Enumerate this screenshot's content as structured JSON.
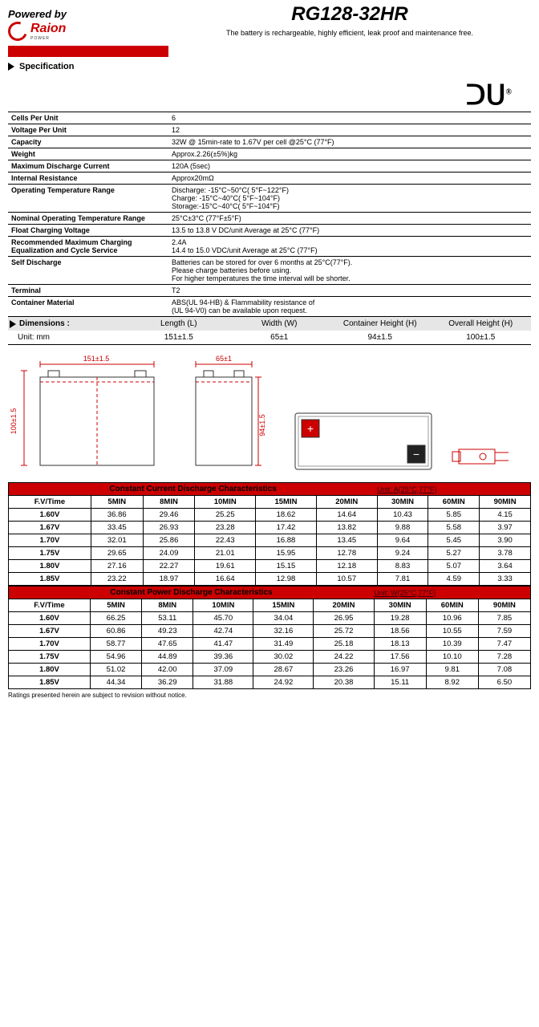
{
  "header": {
    "powered_by": "Powered by",
    "brand": "Raion",
    "brand_sub": "POWER",
    "model": "RG128-32HR",
    "tagline": "The battery is rechargeable, highly efficient, leak proof and maintenance free."
  },
  "ul_mark": "ᑐᑌ",
  "spec": {
    "title": "Specification",
    "rows": [
      {
        "k": "Cells Per Unit",
        "v": "6"
      },
      {
        "k": "Voltage Per Unit",
        "v": "12"
      },
      {
        "k": "Capacity",
        "v": "32W @ 15min-rate to 1.67V per cell @25°C (77°F)"
      },
      {
        "k": "Weight",
        "v": "Approx.2.26(±5%)kg"
      },
      {
        "k": "Maximum Discharge Current",
        "v": "120A (5sec)"
      },
      {
        "k": "Internal Resistance",
        "v": "Approx20mΩ"
      },
      {
        "k": "Operating Temperature Range",
        "v": "Discharge: -15°C~50°C( 5°F~122°F)\nCharge: -15°C~40°C( 5°F~104°F)\nStorage:-15°C~40°C( 5°F~104°F)"
      },
      {
        "k": "Nominal Operating Temperature Range",
        "v": "25°C±3°C (77°F±5°F)"
      },
      {
        "k": "Float Charging Voltage",
        "v": "13.5 to 13.8 V DC/unit Average at 25°C (77°F)"
      },
      {
        "k": "Recommended Maximum Charging Equalization and Cycle Service",
        "v": "2.4A\n14.4 to 15.0 VDC/unit Average at 25°C (77°F)"
      },
      {
        "k": "Self Discharge",
        "v": "Batteries can be stored for over 6 months at 25°C(77°F).\nPlease charge batteries before using.\nFor higher temperatures the time interval will be shorter."
      },
      {
        "k": "Terminal",
        "v": "T2"
      },
      {
        "k": "Container Material",
        "v": "ABS(UL 94-HB) & Flammability resistance of\n(UL 94-V0) can be available upon request."
      }
    ]
  },
  "dimensions": {
    "title": "Dimensions :",
    "unit_label": "Unit: mm",
    "cols": [
      "Length (L)",
      "Width (W)",
      "Container Height (H)",
      "Overall Height (H)"
    ],
    "vals": [
      "151±1.5",
      "65±1",
      "94±1.5",
      "100±1.5"
    ],
    "label_L": "151±1.5",
    "label_W": "65±1",
    "label_H": "94±1.5",
    "label_OH": "100±1.5"
  },
  "colors": {
    "accent": "#cc0000",
    "gray": "#e6e6e6"
  },
  "table1": {
    "title": "Constant Current Discharge Characteristics",
    "unit": "Unit: A(25°C,77°F)",
    "head": [
      "F.V/Time",
      "5MIN",
      "8MIN",
      "10MIN",
      "15MIN",
      "20MIN",
      "30MIN",
      "60MIN",
      "90MIN"
    ],
    "rows": [
      [
        "1.60V",
        "36.86",
        "29.46",
        "25.25",
        "18.62",
        "14.64",
        "10.43",
        "5.85",
        "4.15"
      ],
      [
        "1.67V",
        "33.45",
        "26.93",
        "23.28",
        "17.42",
        "13.82",
        "9.88",
        "5.58",
        "3.97"
      ],
      [
        "1.70V",
        "32.01",
        "25.86",
        "22.43",
        "16.88",
        "13.45",
        "9.64",
        "5.45",
        "3.90"
      ],
      [
        "1.75V",
        "29.65",
        "24.09",
        "21.01",
        "15.95",
        "12.78",
        "9.24",
        "5.27",
        "3.78"
      ],
      [
        "1.80V",
        "27.16",
        "22.27",
        "19.61",
        "15.15",
        "12.18",
        "8.83",
        "5.07",
        "3.64"
      ],
      [
        "1.85V",
        "23.22",
        "18.97",
        "16.64",
        "12.98",
        "10.57",
        "7.81",
        "4.59",
        "3.33"
      ]
    ]
  },
  "table2": {
    "title": "Constant Power Discharge Characteristics",
    "unit": "Unit: W(25°C,77°F)",
    "head": [
      "F.V/Time",
      "5MIN",
      "8MIN",
      "10MIN",
      "15MIN",
      "20MIN",
      "30MIN",
      "60MIN",
      "90MIN"
    ],
    "rows": [
      [
        "1.60V",
        "66.25",
        "53.11",
        "45.70",
        "34.04",
        "26.95",
        "19.28",
        "10.96",
        "7.85"
      ],
      [
        "1.67V",
        "60.86",
        "49.23",
        "42.74",
        "32.16",
        "25.72",
        "18.56",
        "10.55",
        "7.59"
      ],
      [
        "1.70V",
        "58.77",
        "47.65",
        "41.47",
        "31.49",
        "25.18",
        "18.13",
        "10.39",
        "7.47"
      ],
      [
        "1.75V",
        "54.96",
        "44.89",
        "39.36",
        "30.02",
        "24.22",
        "17.56",
        "10.10",
        "7.28"
      ],
      [
        "1.80V",
        "51.02",
        "42.00",
        "37.09",
        "28.67",
        "23.26",
        "16.97",
        "9.81",
        "7.08"
      ],
      [
        "1.85V",
        "44.34",
        "36.29",
        "31.88",
        "24.92",
        "20.38",
        "15.11",
        "8.92",
        "6.50"
      ]
    ]
  },
  "footnote": "Ratings presented herein are subject to revision without notice."
}
